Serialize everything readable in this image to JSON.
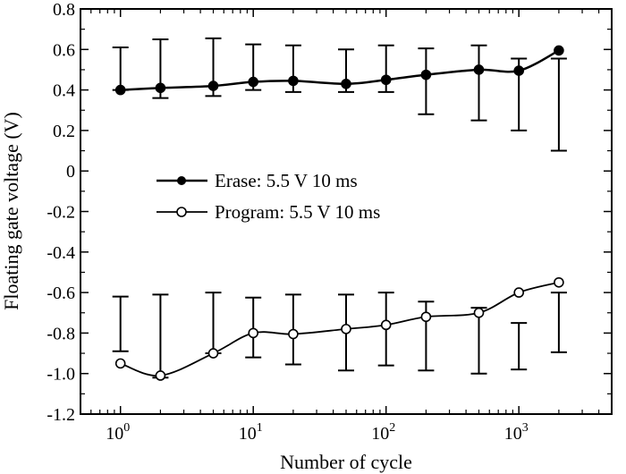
{
  "chart_data": {
    "type": "line",
    "title": "",
    "xlabel": "Number of cycle",
    "ylabel": "Floating gate voltage (V)",
    "x_scale": "log",
    "xlim": [
      0.5,
      5000
    ],
    "ylim": [
      -1.2,
      0.8
    ],
    "x_ticks": [
      {
        "value": 1,
        "base": "10",
        "exp": "0"
      },
      {
        "value": 10,
        "base": "10",
        "exp": "1"
      },
      {
        "value": 100,
        "base": "10",
        "exp": "2"
      },
      {
        "value": 1000,
        "base": "10",
        "exp": "3"
      }
    ],
    "y_ticks": [
      {
        "value": 0.8,
        "label": "0.8"
      },
      {
        "value": 0.6,
        "label": "0.6"
      },
      {
        "value": 0.4,
        "label": "0.4"
      },
      {
        "value": 0.2,
        "label": "0.2"
      },
      {
        "value": 0,
        "label": "0"
      },
      {
        "value": -0.2,
        "label": "-0.2"
      },
      {
        "value": -0.4,
        "label": "-0.4"
      },
      {
        "value": -0.6,
        "label": "-0.6"
      },
      {
        "value": -0.8,
        "label": "-0.8"
      },
      {
        "value": -1.0,
        "label": "-1.0"
      },
      {
        "value": -1.2,
        "label": "-1.2"
      }
    ],
    "legend_position": "center-left",
    "series": [
      {
        "name": "Erase: 5.5 V 10 ms",
        "marker": "filled-circle",
        "x": [
          1,
          2,
          5,
          10,
          20,
          50,
          100,
          200,
          500,
          1000,
          2000
        ],
        "y": [
          0.4,
          0.41,
          0.42,
          0.44,
          0.445,
          0.43,
          0.45,
          0.475,
          0.5,
          0.495,
          0.595
        ],
        "err_low": [
          0.4,
          0.36,
          0.37,
          0.4,
          0.39,
          0.39,
          0.39,
          0.28,
          0.25,
          0.2,
          0.1
        ],
        "err_high": [
          0.61,
          0.65,
          0.655,
          0.625,
          0.62,
          0.6,
          0.62,
          0.605,
          0.62,
          0.555,
          0.555
        ]
      },
      {
        "name": "Program: 5.5 V 10 ms",
        "marker": "open-circle",
        "x": [
          1,
          2,
          5,
          10,
          20,
          50,
          100,
          200,
          500,
          1000,
          2000
        ],
        "y": [
          -0.95,
          -1.01,
          -0.9,
          -0.8,
          -0.805,
          -0.78,
          -0.76,
          -0.72,
          -0.7,
          -0.6,
          -0.55
        ],
        "err_low": [
          -0.89,
          -1.02,
          -0.9,
          -0.92,
          -0.955,
          -0.985,
          -0.96,
          -0.985,
          -1.0,
          -0.98,
          -0.895
        ],
        "err_high": [
          -0.62,
          -0.61,
          -0.6,
          -0.625,
          -0.61,
          -0.61,
          -0.6,
          -0.645,
          -0.675,
          -0.75,
          -0.6
        ]
      }
    ]
  }
}
